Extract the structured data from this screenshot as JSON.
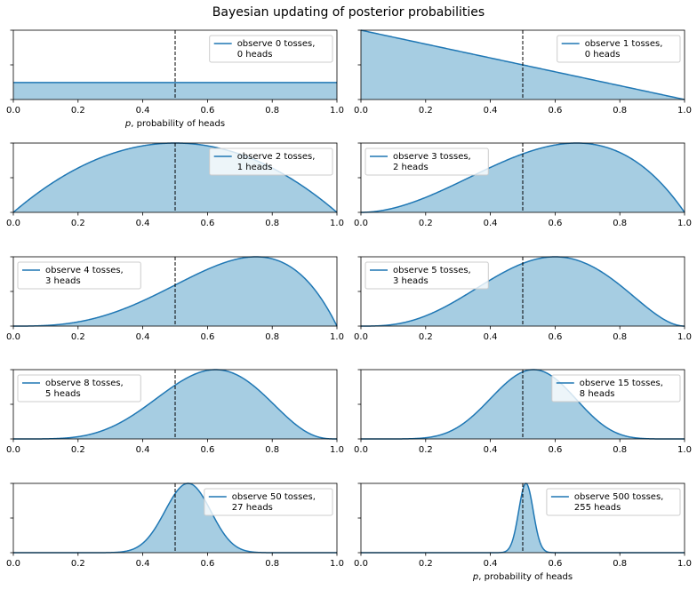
{
  "figure": {
    "title": "Bayesian updating of posterior probabilities",
    "x_axis_label_parts": [
      "p",
      ", probability of heads"
    ]
  },
  "colors": {
    "line": "#1f77b4",
    "fill": "#a6cde2",
    "reference_line": "#000000",
    "legend_border": "#cccccc"
  },
  "chart_data": [
    {
      "type": "area",
      "tosses": 0,
      "heads": 0,
      "legend": [
        "observe 0 tosses,",
        " 0 heads"
      ],
      "xlim": [
        0,
        1
      ],
      "xticks": [
        "0.0",
        "0.2",
        "0.4",
        "0.6",
        "0.8",
        "1.0"
      ],
      "reference_x": 0.5,
      "legend_loc": "upper right",
      "show_xlabel": true
    },
    {
      "type": "area",
      "tosses": 1,
      "heads": 0,
      "legend": [
        "observe 1 tosses,",
        " 0 heads"
      ],
      "xlim": [
        0,
        1
      ],
      "xticks": [
        "0.0",
        "0.2",
        "0.4",
        "0.6",
        "0.8",
        "1.0"
      ],
      "reference_x": 0.5,
      "legend_loc": "upper right",
      "show_xlabel": false
    },
    {
      "type": "area",
      "tosses": 2,
      "heads": 1,
      "legend": [
        "observe 2 tosses,",
        " 1 heads"
      ],
      "xlim": [
        0,
        1
      ],
      "xticks": [
        "0.0",
        "0.2",
        "0.4",
        "0.6",
        "0.8",
        "1.0"
      ],
      "reference_x": 0.5,
      "legend_loc": "upper right",
      "show_xlabel": false
    },
    {
      "type": "area",
      "tosses": 3,
      "heads": 2,
      "legend": [
        "observe 3 tosses,",
        " 2 heads"
      ],
      "xlim": [
        0,
        1
      ],
      "xticks": [
        "0.0",
        "0.2",
        "0.4",
        "0.6",
        "0.8",
        "1.0"
      ],
      "reference_x": 0.5,
      "legend_loc": "upper left",
      "show_xlabel": false
    },
    {
      "type": "area",
      "tosses": 4,
      "heads": 3,
      "legend": [
        "observe 4 tosses,",
        " 3 heads"
      ],
      "xlim": [
        0,
        1
      ],
      "xticks": [
        "0.0",
        "0.2",
        "0.4",
        "0.6",
        "0.8",
        "1.0"
      ],
      "reference_x": 0.5,
      "legend_loc": "upper left",
      "show_xlabel": false
    },
    {
      "type": "area",
      "tosses": 5,
      "heads": 3,
      "legend": [
        "observe 5 tosses,",
        " 3 heads"
      ],
      "xlim": [
        0,
        1
      ],
      "xticks": [
        "0.0",
        "0.2",
        "0.4",
        "0.6",
        "0.8",
        "1.0"
      ],
      "reference_x": 0.5,
      "legend_loc": "upper left",
      "show_xlabel": false
    },
    {
      "type": "area",
      "tosses": 8,
      "heads": 5,
      "legend": [
        "observe 8 tosses,",
        " 5 heads"
      ],
      "xlim": [
        0,
        1
      ],
      "xticks": [
        "0.0",
        "0.2",
        "0.4",
        "0.6",
        "0.8",
        "1.0"
      ],
      "reference_x": 0.5,
      "legend_loc": "upper left",
      "show_xlabel": false
    },
    {
      "type": "area",
      "tosses": 15,
      "heads": 8,
      "legend": [
        "observe 15 tosses,",
        " 8 heads"
      ],
      "xlim": [
        0,
        1
      ],
      "xticks": [
        "0.0",
        "0.2",
        "0.4",
        "0.6",
        "0.8",
        "1.0"
      ],
      "reference_x": 0.5,
      "legend_loc": "upper right",
      "show_xlabel": false
    },
    {
      "type": "area",
      "tosses": 50,
      "heads": 27,
      "legend": [
        "observe 50 tosses,",
        " 27 heads"
      ],
      "xlim": [
        0,
        1
      ],
      "xticks": [
        "0.0",
        "0.2",
        "0.4",
        "0.6",
        "0.8",
        "1.0"
      ],
      "reference_x": 0.5,
      "legend_loc": "upper right",
      "show_xlabel": false
    },
    {
      "type": "area",
      "tosses": 500,
      "heads": 255,
      "legend": [
        "observe 500 tosses,",
        " 255 heads"
      ],
      "xlim": [
        0,
        1
      ],
      "xticks": [
        "0.0",
        "0.2",
        "0.4",
        "0.6",
        "0.8",
        "1.0"
      ],
      "reference_x": 0.5,
      "legend_loc": "upper right",
      "show_xlabel": true
    }
  ]
}
